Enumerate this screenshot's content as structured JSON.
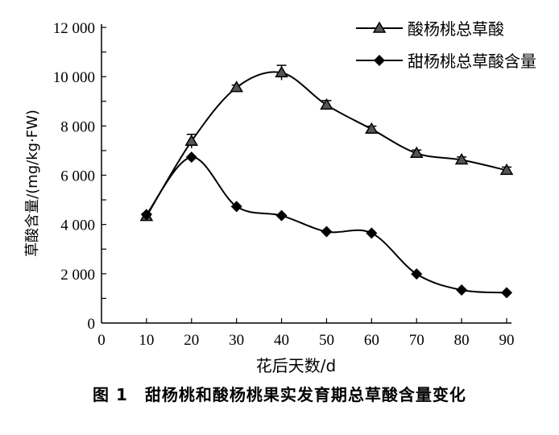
{
  "chart_data": {
    "type": "line",
    "title": "",
    "caption": "图 1　甜杨桃和酸杨桃果实发育期总草酸含量变化",
    "xlabel": "花后天数/d",
    "ylabel": "草酸含量/(mg/kg·FW)",
    "xlim": [
      0,
      90
    ],
    "ylim": [
      0,
      12000
    ],
    "x_ticks": [
      "0",
      "10",
      "20",
      "30",
      "40",
      "50",
      "60",
      "70",
      "80",
      "90"
    ],
    "y_ticks": [
      "0",
      "2 000",
      "4 000",
      "6 000",
      "8 000",
      "10 000",
      "12 000"
    ],
    "x": [
      10,
      20,
      30,
      40,
      50,
      60,
      70,
      80,
      90
    ],
    "legend_position": "top-right",
    "grid": false,
    "series": [
      {
        "name": "酸杨桃总草酸",
        "marker": "triangle",
        "values": [
          4330,
          7380,
          9560,
          10160,
          8850,
          7870,
          6890,
          6620,
          6200
        ],
        "errors": [
          120,
          280,
          100,
          300,
          180,
          120,
          130,
          120,
          130
        ]
      },
      {
        "name": "甜杨桃总草酸含量",
        "marker": "diamond",
        "values": [
          4400,
          6730,
          4730,
          4360,
          3710,
          3650,
          1990,
          1340,
          1230
        ],
        "errors": [
          0,
          0,
          0,
          0,
          0,
          0,
          0,
          0,
          0
        ]
      }
    ]
  }
}
